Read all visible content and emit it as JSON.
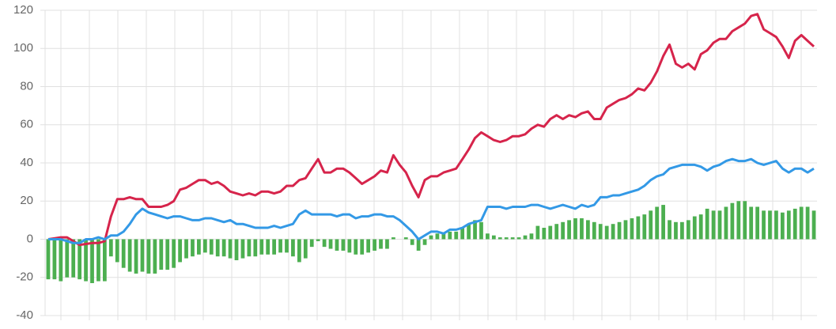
{
  "chart_data": {
    "type": "combo",
    "ylim": [
      -40,
      120
    ],
    "yticks": [
      -40,
      -20,
      0,
      20,
      40,
      60,
      80,
      100,
      120
    ],
    "grid": true,
    "series": [
      {
        "type": "bar",
        "color": "#4caf50",
        "values": [
          -21,
          -21,
          -22,
          -20,
          -20,
          -21,
          -22,
          -23,
          -22,
          -22,
          -9,
          -12,
          -15,
          -17,
          -18,
          -17,
          -18,
          -18,
          -16,
          -16,
          -15,
          -12,
          -10,
          -9,
          -8,
          -7,
          -8,
          -9,
          -9,
          -10,
          -11,
          -10,
          -9,
          -9,
          -8,
          -8,
          -8,
          -7,
          -7,
          -9,
          -12,
          -10,
          -4,
          -1,
          -4,
          -5,
          -6,
          -6,
          -7,
          -8,
          -8,
          -7,
          -6,
          -5,
          -5,
          1,
          0,
          1,
          -3,
          -6,
          -3,
          2,
          3,
          3,
          4,
          4,
          6,
          8,
          10,
          9,
          3,
          2,
          1,
          1,
          1,
          1,
          2,
          3,
          7,
          6,
          7,
          8,
          9,
          10,
          11,
          11,
          10,
          9,
          8,
          7,
          8,
          9,
          10,
          11,
          12,
          13,
          15,
          17,
          18,
          10,
          9,
          9,
          10,
          12,
          13,
          16,
          15,
          15,
          17,
          19,
          20,
          20,
          17,
          17,
          15,
          15,
          15,
          14,
          15,
          16,
          17,
          17,
          15
        ]
      },
      {
        "type": "line",
        "color": "#d6244b",
        "values": [
          0,
          0.5,
          1,
          1,
          -1,
          -3,
          -2.5,
          -2,
          -2,
          -1,
          12,
          21,
          21,
          22,
          21,
          21,
          17,
          17,
          17,
          18,
          20,
          26,
          27,
          29,
          31,
          31,
          29,
          30,
          28,
          25,
          24,
          23,
          24,
          23,
          25,
          25,
          24,
          25,
          28,
          28,
          31,
          32,
          37,
          42,
          35,
          35,
          37,
          37,
          35,
          32,
          29,
          31,
          33,
          36,
          35,
          44,
          39,
          35,
          28,
          22,
          31,
          33,
          33,
          35,
          36,
          37,
          42,
          47,
          53,
          56,
          54,
          52,
          51,
          52,
          54,
          54,
          55,
          58,
          60,
          59,
          63,
          65,
          63,
          65,
          64,
          66,
          67,
          63,
          63,
          69,
          71,
          73,
          74,
          76,
          79,
          78,
          82,
          88,
          96,
          102,
          92,
          90,
          92,
          89,
          97,
          99,
          103,
          105,
          105,
          109,
          111,
          113,
          117,
          118,
          110,
          108,
          106,
          101,
          95,
          104,
          107,
          104,
          101
        ]
      },
      {
        "type": "line",
        "color": "#3399e6",
        "values": [
          0,
          0,
          0,
          -1,
          -2,
          -2,
          0,
          0,
          1,
          0,
          2,
          2,
          4,
          8,
          13,
          16,
          14,
          13,
          12,
          11,
          12,
          12,
          11,
          10,
          10,
          11,
          11,
          10,
          9,
          10,
          8,
          8,
          7,
          6,
          6,
          6,
          7,
          6,
          7,
          8,
          13,
          15,
          13,
          13,
          13,
          13,
          12,
          13,
          13,
          11,
          12,
          12,
          13,
          13,
          12,
          12,
          10,
          7,
          4,
          0,
          2,
          4,
          4,
          3,
          5,
          5,
          6,
          8,
          9,
          10,
          17,
          17,
          17,
          16,
          17,
          17,
          17,
          18,
          18,
          17,
          16,
          17,
          18,
          17,
          16,
          18,
          17,
          18,
          22,
          22,
          23,
          23,
          24,
          25,
          26,
          28,
          31,
          33,
          34,
          37,
          38,
          39,
          39,
          39,
          38,
          36,
          38,
          39,
          41,
          42,
          41,
          41,
          42,
          40,
          39,
          40,
          41,
          37,
          35,
          37,
          37,
          35,
          37
        ]
      }
    ]
  }
}
